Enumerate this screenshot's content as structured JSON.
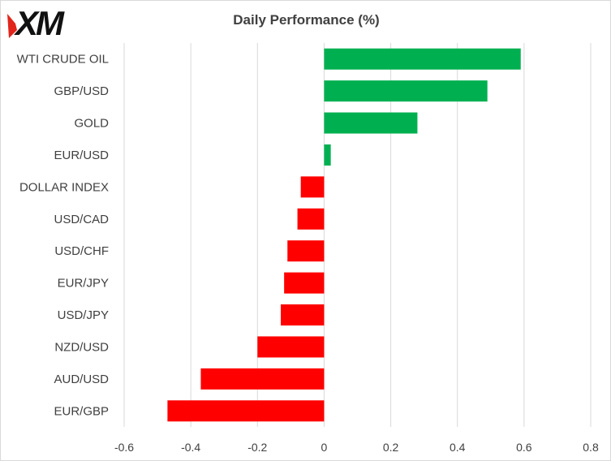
{
  "logo": {
    "text": "XM"
  },
  "chart_data": {
    "type": "bar",
    "orientation": "horizontal",
    "title": "Daily Performance  (%)",
    "xlabel": "",
    "ylabel": "",
    "categories": [
      "WTI CRUDE OIL",
      "GBP/USD",
      "GOLD",
      "EUR/USD",
      "DOLLAR INDEX",
      "USD/CAD",
      "USD/CHF",
      "EUR/JPY",
      "USD/JPY",
      "NZD/USD",
      "AUD/USD",
      "EUR/GBP"
    ],
    "values": [
      0.59,
      0.49,
      0.28,
      0.02,
      -0.07,
      -0.08,
      -0.11,
      -0.12,
      -0.13,
      -0.2,
      -0.37,
      -0.47
    ],
    "xlim": [
      -0.6,
      0.8
    ],
    "xticks": [
      -0.6,
      -0.4,
      -0.2,
      0,
      0.2,
      0.4,
      0.6,
      0.8
    ],
    "xtick_labels": [
      "-0.6",
      "-0.4",
      "-0.2",
      "0",
      "0.2",
      "0.4",
      "0.6",
      "0.8"
    ],
    "grid": "vertical",
    "legend": "none",
    "colors": {
      "positive": "#00b050",
      "negative": "#ff0000",
      "grid": "#d9d9d9",
      "text": "#404040"
    }
  }
}
